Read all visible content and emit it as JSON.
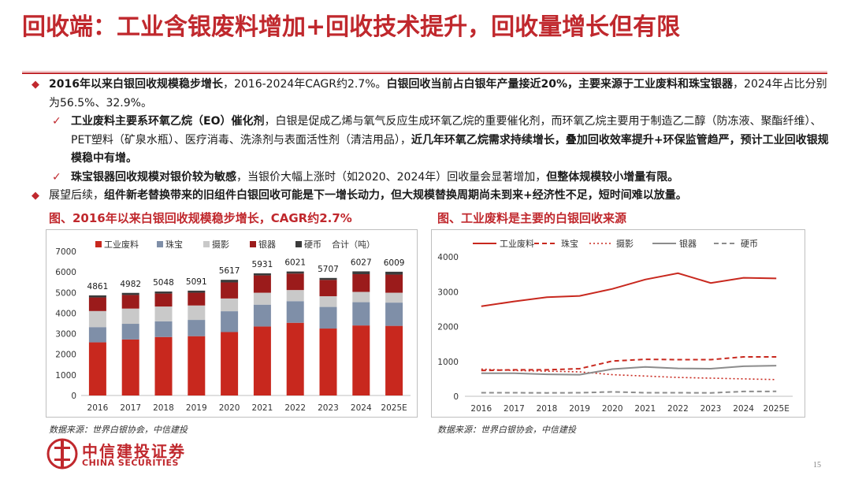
{
  "slide": {
    "title": "回收端：工业含银废料增加+回收技术提升，回收量增长但有限",
    "page_number": "15"
  },
  "bullets": {
    "b1_bold1": "2016年以来白银回收规模稳步增长",
    "b1_t1": "，2016-2024年CAGR约2.7%。",
    "b1_bold2": "白银回收当前占白银年产量接近20%，主要来源于工业废料和珠宝银器",
    "b1_t2": "，2024年占比分别为56.5%、32.9%。",
    "s1_bold1": "工业废料主要系环氧乙烷（EO）催化剂",
    "s1_t1": "，白银是促成乙烯与氧气反应生成环氧乙烷的重要催化剂，而环氧乙烷主要用于制造乙二醇（防冻液、聚酯纤维）、PET塑料（矿泉水瓶）、医疗消毒、洗涤剂与表面活性剂（清洁用品），",
    "s1_bold2": "近几年环氧乙烷需求持续增长，叠加回收效率提升+环保监管趋严，预计工业回收银规模稳中有增。",
    "s2_bold1": "珠宝银器回收规模对银价较为敏感",
    "s2_t1": "，当银价大幅上涨时（如2020、2024年）回收量会显著增加，",
    "s2_bold2": "但整体规模较小增量有限。",
    "b2_t1": "展望后续，",
    "b2_bold1": "组件新老替换带来的旧组件白银回收可能是下一增长动力，但大规模替换周期尚未到来+经济性不足，短时间难以放量。"
  },
  "captions": {
    "left": "图、2016年以来白银回收规模稳步增长，CAGR约2.7%",
    "right": "图、工业废料是主要的白银回收来源"
  },
  "sources": {
    "left": "数据来源：世界白银协会，中信建投",
    "right": "数据来源：世界白银协会，中信建投"
  },
  "logo": {
    "cn": "中信建投证券",
    "en": "CHINA SECURITIES"
  },
  "colors": {
    "accent": "#c0282d",
    "industrial": "#c8281e",
    "jewelry": "#7f8fa8",
    "photo": "#c9c9c9",
    "silverware": "#9b1b1b",
    "coins": "#3b3b3b"
  },
  "chart_data": [
    {
      "type": "bar",
      "stacked": true,
      "categories": [
        "2016",
        "2017",
        "2018",
        "2019",
        "2020",
        "2021",
        "2022",
        "2023",
        "2024",
        "2025E"
      ],
      "series": [
        {
          "name": "工业废料",
          "values": [
            2580,
            2720,
            2840,
            2880,
            3080,
            3350,
            3530,
            3250,
            3400,
            3380
          ]
        },
        {
          "name": "珠宝",
          "values": [
            740,
            760,
            760,
            790,
            1010,
            1060,
            1050,
            1050,
            1130,
            1130
          ]
        },
        {
          "name": "摄影",
          "values": [
            780,
            740,
            720,
            700,
            620,
            580,
            540,
            520,
            500,
            480
          ]
        },
        {
          "name": "银器",
          "values": [
            660,
            660,
            630,
            620,
            780,
            840,
            800,
            790,
            860,
            880
          ]
        },
        {
          "name": "硬币",
          "values": [
            101,
            102,
            98,
            101,
            127,
            101,
            101,
            97,
            137,
            139
          ]
        }
      ],
      "totals_name": "合计（吨）",
      "totals": [
        4861,
        4982,
        5048,
        5091,
        5617,
        5931,
        6021,
        5707,
        6027,
        6009
      ],
      "ylim": [
        0,
        7000
      ],
      "yticks": [
        "0",
        "1000",
        "2000",
        "3000",
        "4000",
        "5000",
        "6000",
        "7000"
      ],
      "legend": "top",
      "grid": false
    },
    {
      "type": "line",
      "categories": [
        "2016",
        "2017",
        "2018",
        "2019",
        "2020",
        "2021",
        "2022",
        "2023",
        "2024",
        "2025E"
      ],
      "series": [
        {
          "name": "工业废料",
          "values": [
            2580,
            2720,
            2840,
            2880,
            3080,
            3350,
            3530,
            3250,
            3400,
            3380
          ]
        },
        {
          "name": "珠宝",
          "values": [
            740,
            760,
            760,
            790,
            1010,
            1060,
            1050,
            1050,
            1130,
            1130
          ]
        },
        {
          "name": "摄影",
          "values": [
            780,
            740,
            720,
            700,
            620,
            580,
            540,
            520,
            500,
            480
          ]
        },
        {
          "name": "银器",
          "values": [
            660,
            660,
            630,
            620,
            780,
            840,
            800,
            790,
            860,
            880
          ]
        },
        {
          "name": "硬币",
          "values": [
            101,
            102,
            98,
            101,
            127,
            101,
            101,
            97,
            137,
            139
          ]
        }
      ],
      "ylim": [
        0,
        4000
      ],
      "yticks": [
        "0",
        "1000",
        "2000",
        "3000",
        "4000"
      ],
      "legend": "top",
      "grid": false
    }
  ]
}
